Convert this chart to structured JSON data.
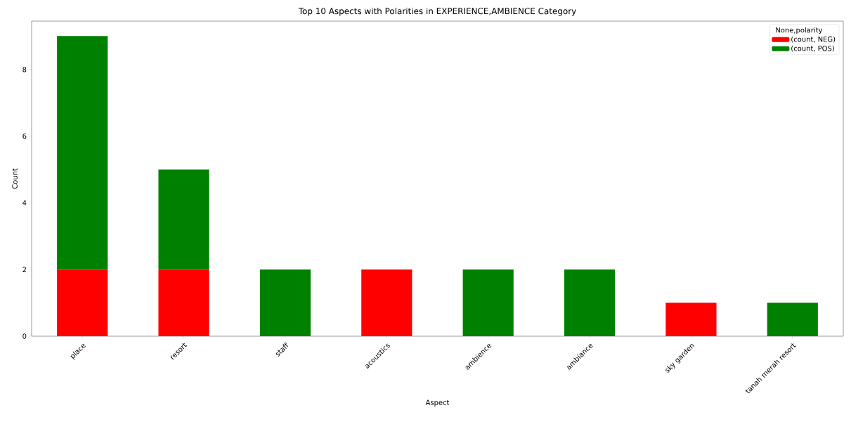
{
  "chart_data": {
    "type": "bar",
    "title": "Top 10 Aspects with Polarities in EXPERIENCE,AMBIENCE Category",
    "xlabel": "Aspect",
    "ylabel": "Count",
    "legend_title": "None,polarity",
    "stacked": true,
    "categories": [
      "place",
      "resort",
      "staff",
      "acoustics",
      "ambience",
      "ambiance",
      "sky garden",
      "tanah merah resort"
    ],
    "series": [
      {
        "name": "(count, NEG)",
        "color": "#ff0000",
        "values": [
          2,
          2,
          0,
          2,
          0,
          0,
          1,
          0
        ]
      },
      {
        "name": "(count, POS)",
        "color": "#008000",
        "values": [
          7,
          3,
          2,
          0,
          2,
          2,
          0,
          1
        ]
      }
    ],
    "ylim": [
      0,
      9.45
    ],
    "yticks": [
      0,
      2,
      4,
      6,
      8
    ],
    "grid": false,
    "legend": "top right"
  }
}
